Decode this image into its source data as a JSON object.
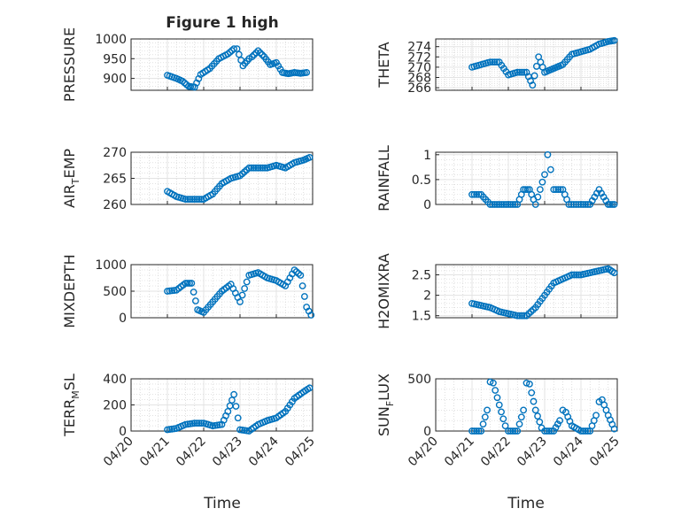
{
  "figure": {
    "title": "Figure 1 high",
    "xlabel": "Time"
  },
  "chart_data": [
    {
      "type": "scatter",
      "ylabel": "PRESSURE",
      "ylim": [
        870,
        1000
      ],
      "yticks": [
        "900",
        "950",
        "1000"
      ],
      "ytick_values": [
        900,
        950,
        1000
      ],
      "x": [
        "04/21 00:00",
        "04/21 06:00",
        "04/21 10:00",
        "04/21 14:00",
        "04/21 18:00",
        "04/21 22:00",
        "04/22 04:00",
        "04/22 10:00",
        "04/22 16:00",
        "04/22 20:00",
        "04/22 22:00",
        "04/23 02:00",
        "04/23 06:00",
        "04/23 08:00",
        "04/23 12:00",
        "04/23 16:00",
        "04/23 20:00",
        "04/24 00:00",
        "04/24 04:00",
        "04/24 08:00",
        "04/24 12:00",
        "04/24 16:00",
        "04/24 20:00"
      ],
      "y": [
        908,
        900,
        893,
        880,
        878,
        910,
        925,
        950,
        962,
        975,
        975,
        932,
        950,
        955,
        970,
        955,
        935,
        940,
        915,
        912,
        915,
        913,
        915
      ]
    },
    {
      "type": "scatter",
      "ylabel": "THETA",
      "ylim": [
        265.5,
        275.5
      ],
      "yticks": [
        "266",
        "268",
        "270",
        "272",
        "274"
      ],
      "ytick_values": [
        266,
        268,
        270,
        272,
        274
      ],
      "x": [
        "04/21 00:00",
        "04/21 06:00",
        "04/21 12:00",
        "04/21 18:00",
        "04/22 00:00",
        "04/22 06:00",
        "04/22 12:00",
        "04/22 16:00",
        "04/22 20:00",
        "04/23 00:00",
        "04/23 04:00",
        "04/23 08:00",
        "04/23 12:00",
        "04/23 18:00",
        "04/24 00:00",
        "04/24 06:00",
        "04/24 12:00",
        "04/24 18:00",
        "04/24 22:00"
      ],
      "y": [
        270,
        270.5,
        271,
        271,
        268.5,
        269,
        269,
        266.5,
        272,
        269,
        269.5,
        270,
        270.5,
        272.5,
        273,
        273.5,
        274.5,
        275,
        275.2
      ]
    },
    {
      "type": "scatter",
      "ylabel": "AIR",
      "ylabel_sub": "T",
      "ylabel_rest": "EMP",
      "ylim": [
        260,
        270
      ],
      "yticks": [
        "260",
        "265",
        "270"
      ],
      "ytick_values": [
        260,
        265,
        270
      ],
      "x": [
        "04/21 00:00",
        "04/21 06:00",
        "04/21 12:00",
        "04/21 18:00",
        "04/22 00:00",
        "04/22 06:00",
        "04/22 12:00",
        "04/22 18:00",
        "04/23 00:00",
        "04/23 06:00",
        "04/23 12:00",
        "04/23 18:00",
        "04/24 00:00",
        "04/24 06:00",
        "04/24 12:00",
        "04/24 18:00",
        "04/24 22:00"
      ],
      "y": [
        262.5,
        261.5,
        261,
        261,
        261,
        262,
        264,
        265,
        265.5,
        267,
        267,
        267,
        267.5,
        267,
        268,
        268.5,
        269
      ]
    },
    {
      "type": "scatter",
      "ylabel": "RAINFALL",
      "ylim": [
        0,
        1.05
      ],
      "yticks": [
        "0",
        "0.5",
        "1"
      ],
      "ytick_values": [
        0,
        0.5,
        1
      ],
      "x": [
        "04/21 00:00",
        "04/21 06:00",
        "04/21 12:00",
        "04/22 00:00",
        "04/22 06:00",
        "04/22 10:00",
        "04/22 14:00",
        "04/22 18:00",
        "04/23 00:00",
        "04/23 02:00",
        "04/23 04:00",
        "04/23 06:00",
        "04/23 12:00",
        "04/23 16:00",
        "04/24 00:00",
        "04/24 06:00",
        "04/24 12:00",
        "04/24 18:00",
        "04/24 22:00"
      ],
      "y": [
        0.2,
        0.2,
        0,
        0,
        0,
        0.3,
        0.3,
        0,
        0.6,
        1,
        0.7,
        0.3,
        0.3,
        0,
        0,
        0,
        0.3,
        0,
        0
      ]
    },
    {
      "type": "scatter",
      "ylabel": "MIXDEPTH",
      "ylim": [
        0,
        1000
      ],
      "yticks": [
        "0",
        "500",
        "1000"
      ],
      "ytick_values": [
        0,
        500,
        1000
      ],
      "x": [
        "04/21 00:00",
        "04/21 06:00",
        "04/21 12:00",
        "04/21 16:00",
        "04/21 20:00",
        "04/22 00:00",
        "04/22 06:00",
        "04/22 12:00",
        "04/22 18:00",
        "04/23 00:00",
        "04/23 06:00",
        "04/23 12:00",
        "04/23 18:00",
        "04/24 00:00",
        "04/24 06:00",
        "04/24 12:00",
        "04/24 16:00",
        "04/24 20:00",
        "04/24 23:00"
      ],
      "y": [
        500,
        520,
        650,
        650,
        150,
        100,
        300,
        500,
        630,
        300,
        800,
        850,
        750,
        700,
        600,
        900,
        800,
        200,
        50
      ]
    },
    {
      "type": "scatter",
      "ylabel": "H2OMIXRA",
      "ylim": [
        1.45,
        2.75
      ],
      "yticks": [
        "1.5",
        "2",
        "2.5"
      ],
      "ytick_values": [
        1.5,
        2,
        2.5
      ],
      "x": [
        "04/21 00:00",
        "04/21 06:00",
        "04/21 12:00",
        "04/21 18:00",
        "04/22 00:00",
        "04/22 06:00",
        "04/22 12:00",
        "04/22 18:00",
        "04/23 00:00",
        "04/23 06:00",
        "04/23 12:00",
        "04/23 18:00",
        "04/24 00:00",
        "04/24 06:00",
        "04/24 12:00",
        "04/24 18:00",
        "04/24 22:00"
      ],
      "y": [
        1.8,
        1.75,
        1.7,
        1.6,
        1.55,
        1.5,
        1.5,
        1.7,
        2.0,
        2.3,
        2.4,
        2.5,
        2.5,
        2.55,
        2.6,
        2.65,
        2.55
      ]
    },
    {
      "type": "scatter",
      "ylabel": "TERR",
      "ylabel_sub": "M",
      "ylabel_rest": "SL",
      "ylim": [
        0,
        400
      ],
      "yticks": [
        "0",
        "200",
        "400"
      ],
      "ytick_values": [
        0,
        200,
        400
      ],
      "x": [
        "04/21 00:00",
        "04/21 06:00",
        "04/21 12:00",
        "04/21 18:00",
        "04/22 00:00",
        "04/22 06:00",
        "04/22 12:00",
        "04/22 16:00",
        "04/22 20:00",
        "04/23 00:00",
        "04/23 06:00",
        "04/23 12:00",
        "04/23 18:00",
        "04/24 00:00",
        "04/24 06:00",
        "04/24 12:00",
        "04/24 18:00",
        "04/24 22:00"
      ],
      "y": [
        10,
        20,
        50,
        60,
        60,
        40,
        50,
        150,
        280,
        10,
        0,
        50,
        80,
        100,
        150,
        250,
        300,
        330
      ]
    },
    {
      "type": "scatter",
      "ylabel": "SUN",
      "ylabel_sub": "F",
      "ylabel_rest": "LUX",
      "ylim": [
        0,
        500
      ],
      "yticks": [
        "0",
        "500"
      ],
      "ytick_values": [
        0,
        500
      ],
      "x": [
        "04/21 00:00",
        "04/21 06:00",
        "04/21 10:00",
        "04/21 12:00",
        "04/21 14:00",
        "04/21 18:00",
        "04/21 22:00",
        "04/22 00:00",
        "04/22 06:00",
        "04/22 10:00",
        "04/22 12:00",
        "04/22 14:00",
        "04/22 18:00",
        "04/22 22:00",
        "04/23 00:00",
        "04/23 06:00",
        "04/23 10:00",
        "04/23 12:00",
        "04/23 14:00",
        "04/23 18:00",
        "04/24 00:00",
        "04/24 06:00",
        "04/24 10:00",
        "04/24 12:00",
        "04/24 14:00",
        "04/24 18:00",
        "04/24 22:00"
      ],
      "y": [
        0,
        0,
        200,
        470,
        460,
        250,
        50,
        0,
        0,
        200,
        460,
        450,
        200,
        30,
        0,
        0,
        100,
        200,
        180,
        50,
        0,
        0,
        150,
        280,
        300,
        150,
        20
      ]
    }
  ],
  "x_axis": {
    "range": [
      "04/20 00:00",
      "04/25 00:00"
    ],
    "ticks": [
      "04/20",
      "04/21",
      "04/22",
      "04/23",
      "04/24",
      "04/25"
    ]
  },
  "style": {
    "marker_color": "#0072bd",
    "axis_color": "#262626",
    "grid_color": "#d0d0d0",
    "grid": true,
    "minor_grid": true,
    "marker": "open-circle"
  }
}
